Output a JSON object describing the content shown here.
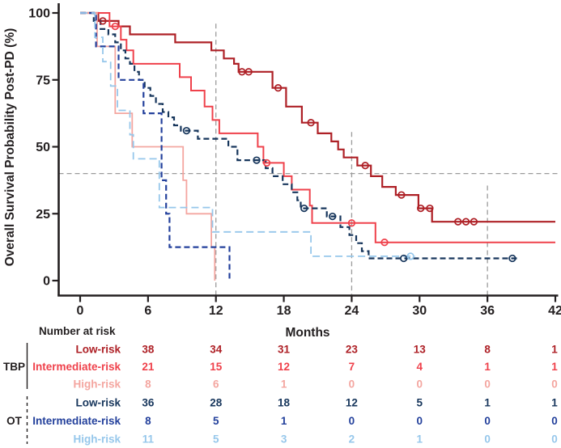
{
  "figure": {
    "kind": "kaplan-meier-survival-plot",
    "background": "#ffffff"
  },
  "axis": {
    "y_title": "Overall Survival Probability Post-PD (%)",
    "x_title": "Months",
    "y_ticks": [
      0,
      25,
      50,
      75,
      100
    ],
    "x_ticks": [
      0,
      6,
      12,
      18,
      24,
      30,
      36,
      42
    ],
    "y_range": [
      0,
      100
    ],
    "x_range": [
      0,
      42
    ],
    "axis_color": "#231f20"
  },
  "reference_lines": {
    "color": "#9b9b9b",
    "horizontal_pct": 40,
    "verticals": [
      {
        "month": 12,
        "from_pct": 96,
        "to_pct": -5
      },
      {
        "month": 24,
        "from_pct": 55.5,
        "to_pct": -5
      },
      {
        "month": 36,
        "from_pct": 35.5,
        "to_pct": -5
      }
    ]
  },
  "chart_data": {
    "type": "line",
    "subtype": "km-step",
    "title": "",
    "xlabel": "Months",
    "ylabel": "Overall Survival Probability Post-PD (%)",
    "xlim": [
      0,
      42
    ],
    "ylim": [
      0,
      100
    ],
    "grid": false,
    "series": [
      {
        "name": "TBP Low-risk",
        "color": "#ae2026",
        "dash": null,
        "width": 2.2,
        "start": [
          0,
          100
        ],
        "end_month": 42,
        "steps": [
          [
            1.6,
            97
          ],
          [
            3.4,
            95
          ],
          [
            4.4,
            92
          ],
          [
            8.4,
            89
          ],
          [
            11.6,
            86
          ],
          [
            12.7,
            83
          ],
          [
            13.6,
            81
          ],
          [
            14.0,
            78
          ],
          [
            17.0,
            72
          ],
          [
            18.2,
            65
          ],
          [
            19.6,
            59
          ],
          [
            21.0,
            55
          ],
          [
            22.2,
            52
          ],
          [
            22.8,
            49
          ],
          [
            23.3,
            46
          ],
          [
            24.5,
            43
          ],
          [
            25.7,
            39
          ],
          [
            26.7,
            35
          ],
          [
            27.9,
            32
          ],
          [
            29.9,
            27
          ],
          [
            31.1,
            22
          ]
        ],
        "censors": [
          [
            2.0,
            97
          ],
          [
            14.3,
            78
          ],
          [
            14.9,
            78
          ],
          [
            17.5,
            72
          ],
          [
            20.4,
            59
          ],
          [
            25.2,
            43
          ],
          [
            28.4,
            32
          ],
          [
            30.1,
            27
          ],
          [
            30.9,
            27
          ],
          [
            33.4,
            22
          ],
          [
            34.1,
            22
          ],
          [
            34.8,
            22
          ]
        ]
      },
      {
        "name": "TBP Intermediate-risk",
        "color": "#ef414b",
        "dash": null,
        "width": 2.0,
        "start": [
          0,
          100
        ],
        "end_month": 42,
        "steps": [
          [
            2.6,
            95
          ],
          [
            3.6,
            90
          ],
          [
            4.1,
            86
          ],
          [
            4.7,
            81
          ],
          [
            8.8,
            76
          ],
          [
            9.8,
            71
          ],
          [
            11.0,
            65
          ],
          [
            11.7,
            60
          ],
          [
            12.3,
            55
          ],
          [
            15.7,
            50
          ],
          [
            16.2,
            44
          ],
          [
            18.0,
            39
          ],
          [
            18.7,
            34
          ],
          [
            20.3,
            28
          ],
          [
            20.5,
            21.5
          ],
          [
            26.1,
            14.3
          ]
        ],
        "censors": [
          [
            3.1,
            95
          ],
          [
            16.5,
            44
          ],
          [
            24.0,
            21.5
          ],
          [
            26.9,
            14.3
          ]
        ]
      },
      {
        "name": "TBP High-risk",
        "color": "#f4a6a0",
        "dash": null,
        "width": 1.8,
        "start": [
          0,
          100
        ],
        "end_month": 11.9,
        "steps": [
          [
            1.5,
            87.5
          ],
          [
            3.1,
            62.5
          ],
          [
            4.6,
            50
          ],
          [
            9.1,
            37.5
          ],
          [
            9.4,
            25
          ],
          [
            11.6,
            12.5
          ],
          [
            11.9,
            0
          ]
        ],
        "censors": []
      },
      {
        "name": "OT Low-risk",
        "color": "#17365c",
        "dash": "7 4",
        "width": 2.2,
        "start": [
          0,
          100
        ],
        "end_month": 38.6,
        "steps": [
          [
            1.2,
            97
          ],
          [
            1.8,
            94
          ],
          [
            2.5,
            92
          ],
          [
            3.1,
            89
          ],
          [
            3.6,
            86
          ],
          [
            4.0,
            83
          ],
          [
            4.4,
            81
          ],
          [
            4.8,
            78
          ],
          [
            5.2,
            75
          ],
          [
            5.7,
            72
          ],
          [
            6.2,
            69
          ],
          [
            6.7,
            66
          ],
          [
            7.3,
            63
          ],
          [
            7.8,
            61
          ],
          [
            8.3,
            58
          ],
          [
            8.9,
            56
          ],
          [
            10.4,
            53
          ],
          [
            13.1,
            50
          ],
          [
            13.9,
            45
          ],
          [
            16.4,
            42
          ],
          [
            17.0,
            39
          ],
          [
            17.9,
            36
          ],
          [
            18.7,
            33
          ],
          [
            19.2,
            30
          ],
          [
            19.5,
            27
          ],
          [
            21.8,
            24
          ],
          [
            23.0,
            20
          ],
          [
            23.8,
            17
          ],
          [
            24.4,
            14
          ],
          [
            24.9,
            11
          ],
          [
            25.5,
            8.3
          ]
        ],
        "censors": [
          [
            9.4,
            56
          ],
          [
            15.6,
            45
          ],
          [
            19.8,
            27
          ],
          [
            22.3,
            24
          ],
          [
            28.6,
            8.3
          ],
          [
            38.2,
            8.3
          ]
        ]
      },
      {
        "name": "OT Intermediate-risk",
        "color": "#24419c",
        "dash": "7 4",
        "width": 2.2,
        "start": [
          0,
          100
        ],
        "end_month": 13.2,
        "steps": [
          [
            1.4,
            87.5
          ],
          [
            3.4,
            75
          ],
          [
            5.6,
            62.5
          ],
          [
            7.2,
            37.5
          ],
          [
            7.6,
            25
          ],
          [
            7.9,
            12.5
          ],
          [
            13.2,
            0
          ]
        ],
        "censors": []
      },
      {
        "name": "OT High-risk",
        "color": "#96c7eb",
        "dash": "9 5",
        "width": 1.8,
        "start": [
          0,
          100
        ],
        "end_month": 29.6,
        "steps": [
          [
            1.3,
            90.9
          ],
          [
            2.0,
            81.8
          ],
          [
            2.7,
            72.7
          ],
          [
            3.3,
            63.6
          ],
          [
            4.4,
            54.5
          ],
          [
            4.7,
            45.5
          ],
          [
            7.0,
            27.3
          ],
          [
            11.7,
            18.2
          ],
          [
            20.4,
            9.1
          ]
        ],
        "censors": [
          [
            29.2,
            9.1
          ]
        ]
      }
    ]
  },
  "risk_table": {
    "header": "Number at risk",
    "columns_months": [
      6,
      12,
      18,
      24,
      30,
      36,
      42
    ],
    "groups": [
      {
        "name": "TBP",
        "bracket": "solid",
        "rows": [
          {
            "label": "Low-risk",
            "color": "#ae2026",
            "counts": [
              38,
              34,
              31,
              23,
              13,
              8,
              1
            ]
          },
          {
            "label": "Intermediate-risk",
            "color": "#ef414b",
            "counts": [
              21,
              15,
              12,
              7,
              4,
              1,
              1
            ]
          },
          {
            "label": "High-risk",
            "color": "#f4a6a0",
            "counts": [
              8,
              6,
              1,
              0,
              0,
              0,
              0
            ]
          }
        ]
      },
      {
        "name": "OT",
        "bracket": "dashed",
        "rows": [
          {
            "label": "Low-risk",
            "color": "#17365c",
            "counts": [
              36,
              28,
              18,
              12,
              5,
              1,
              1
            ]
          },
          {
            "label": "Intermediate-risk",
            "color": "#24419c",
            "counts": [
              8,
              5,
              1,
              0,
              0,
              0,
              0
            ]
          },
          {
            "label": "High-risk",
            "color": "#96c7eb",
            "counts": [
              11,
              5,
              3,
              2,
              1,
              0,
              0
            ]
          }
        ]
      }
    ]
  }
}
